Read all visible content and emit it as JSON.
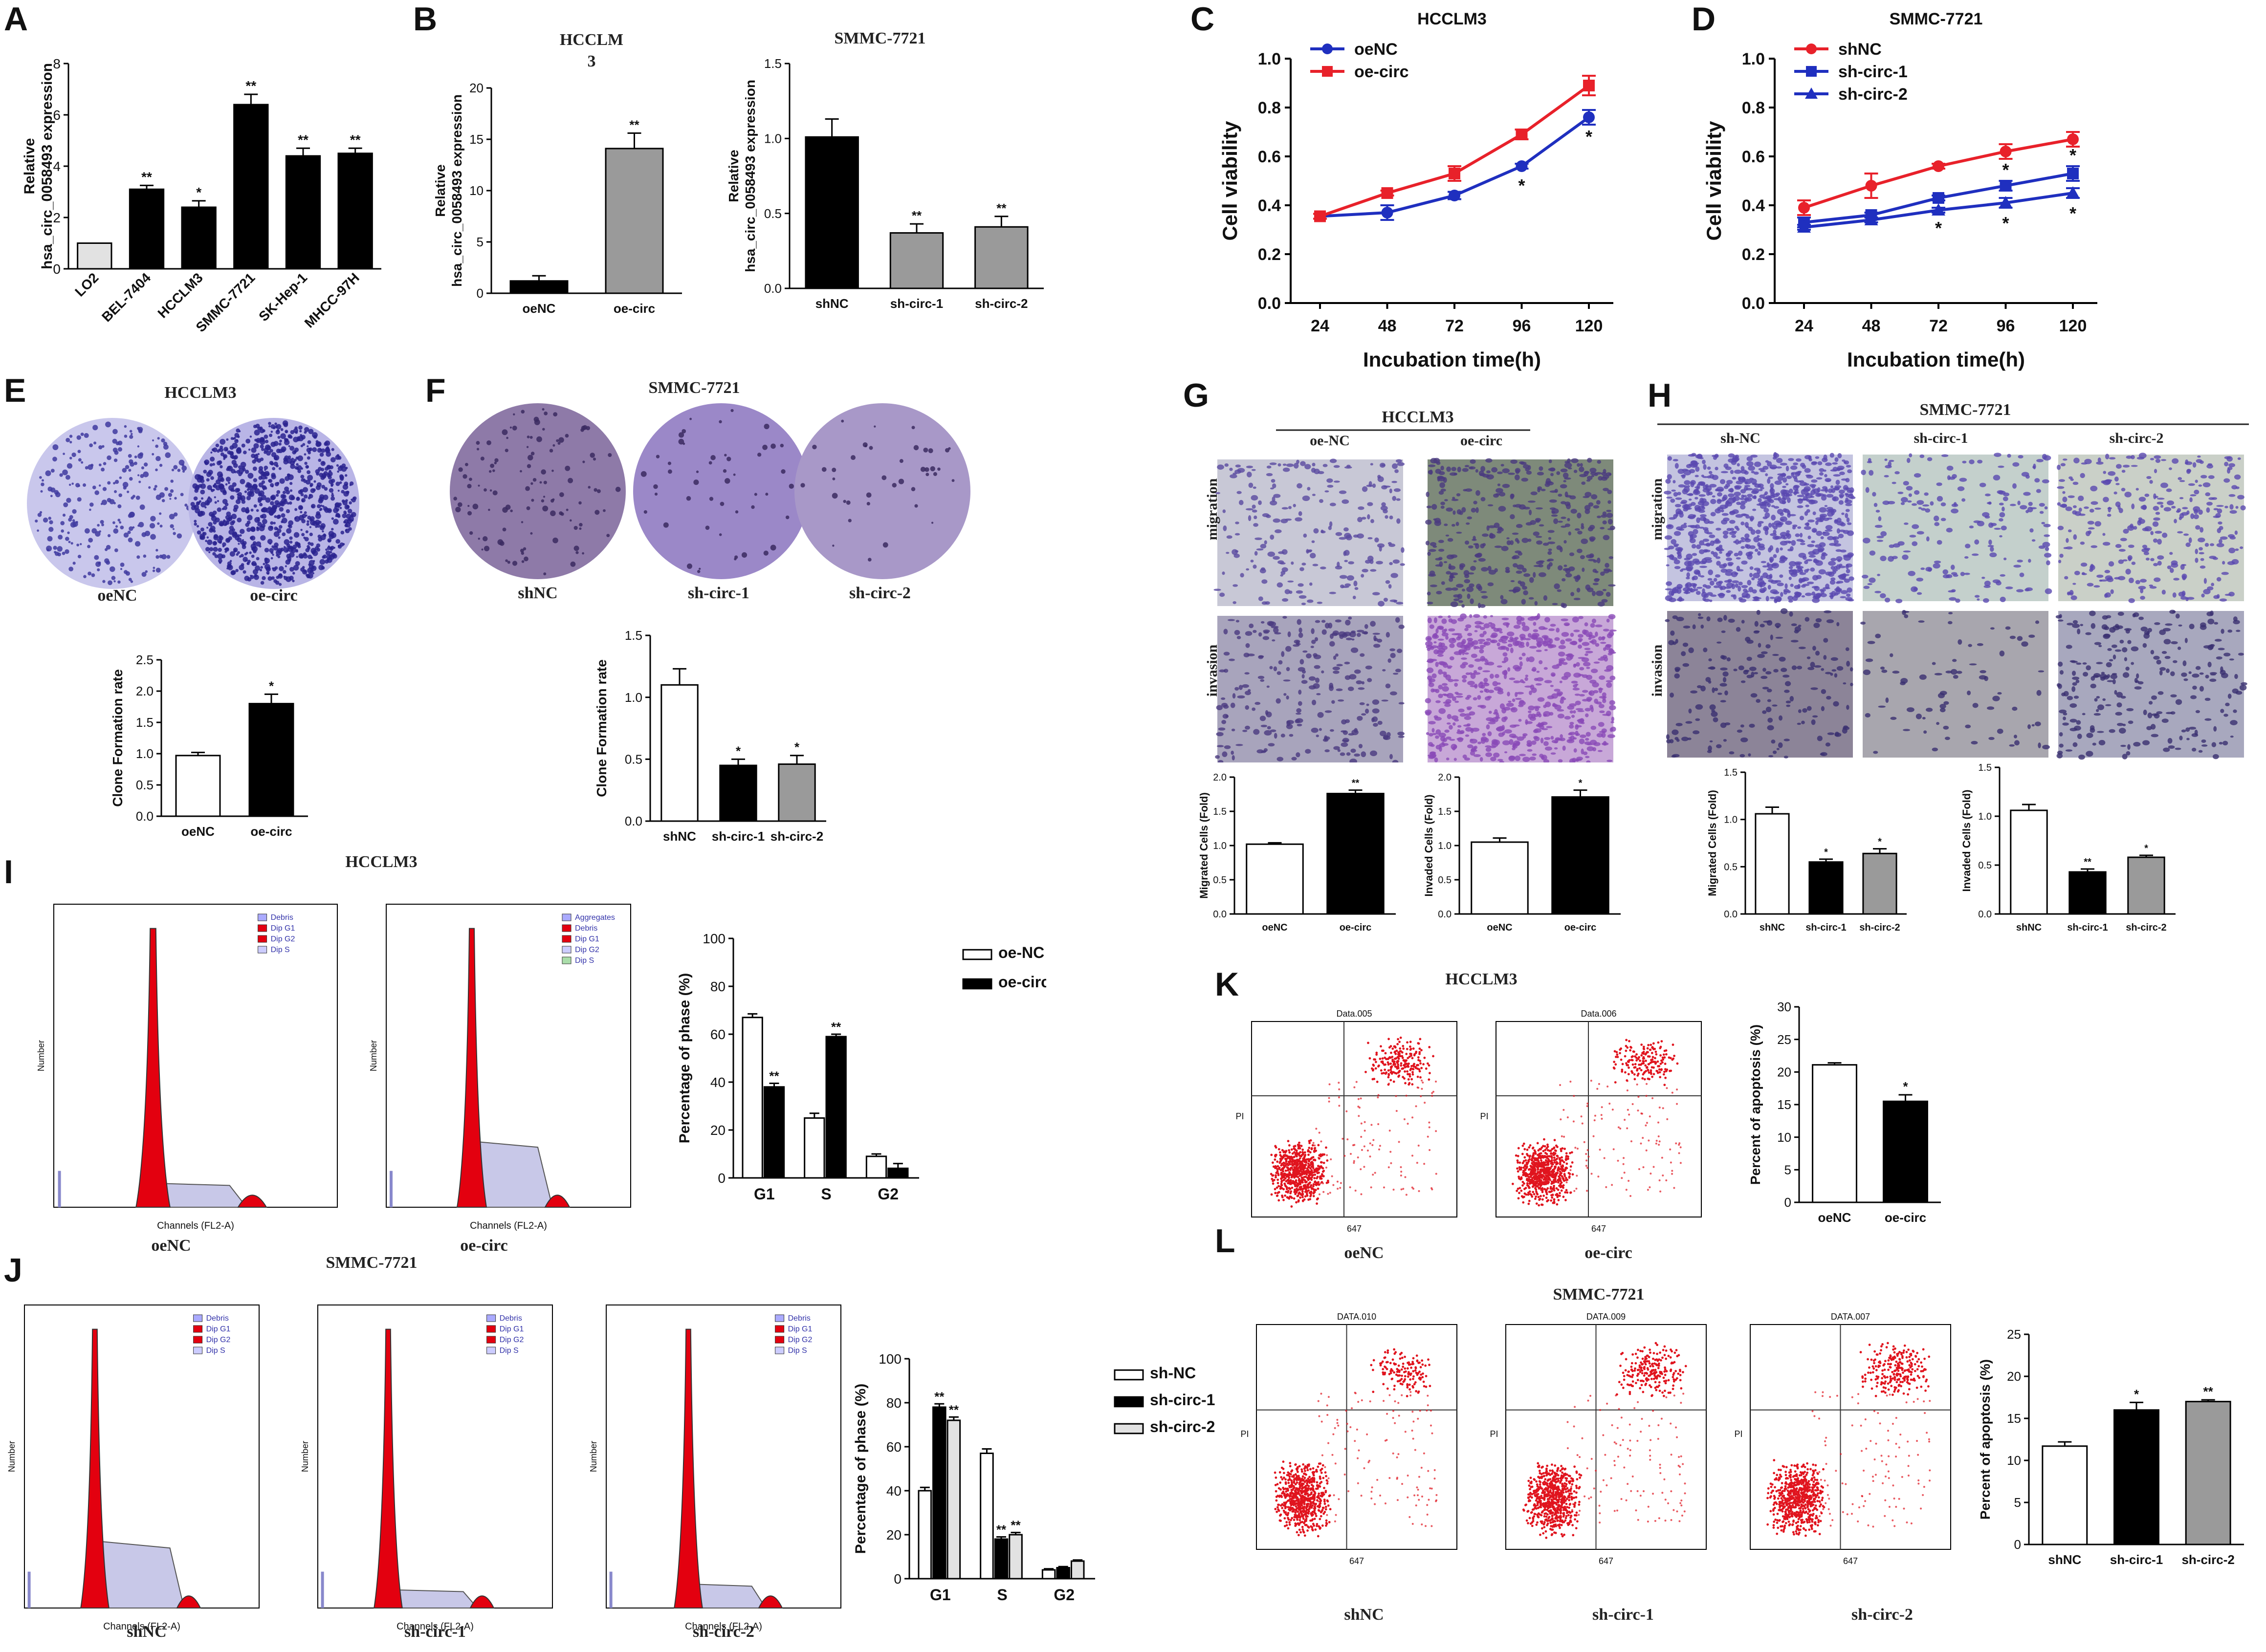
{
  "panels": {
    "A": "A",
    "B": "B",
    "C": "C",
    "D": "D",
    "E": "E",
    "F": "F",
    "G": "G",
    "H": "H",
    "I": "I",
    "J": "J",
    "K": "K",
    "L": "L"
  },
  "titles": {
    "B_left": "HCCLM 3",
    "B_right": "SMMC-7721",
    "E": "HCCLM3",
    "F": "SMMC-7721",
    "G": "HCCLM3",
    "H": "SMMC-7721",
    "I": "HCCLM3",
    "J": "SMMC-7721",
    "K": "HCCLM3",
    "L": "SMMC-7721"
  },
  "labels": {
    "migration": "migration",
    "invasion": "invasion",
    "E_imgs": [
      "oeNC",
      "oe-circ"
    ],
    "F_imgs": [
      "shNC",
      "sh-circ-1",
      "sh-circ-2"
    ],
    "G_cols": [
      "oe-NC",
      "oe-circ"
    ],
    "H_cols": [
      "sh-NC",
      "sh-circ-1",
      "sh-circ-2"
    ],
    "I_hist": [
      "oeNC",
      "oe-circ"
    ],
    "J_hist": [
      "shNC",
      "sh-circ-1",
      "sh-circ-2"
    ],
    "K_flow": [
      "oeNC",
      "oe-circ"
    ],
    "L_flow": [
      "shNC",
      "sh-circ-1",
      "sh-circ-2"
    ],
    "hist_xlabel": "Channels (FL2-A)",
    "hist_ylabel": "Number",
    "hist_legend": [
      "Debris",
      "Dip G1",
      "Dip G2",
      "Dip S"
    ],
    "hist_legend_agg": [
      "Aggregates",
      "Debris",
      "Dip G1",
      "Dip G2",
      "Dip S"
    ],
    "flow_titles_K": [
      "Data.005",
      "Data.006"
    ],
    "flow_titles_L": [
      "DATA.010",
      "DATA.009",
      "DATA.007"
    ],
    "flow_y": "PI",
    "flow_x": "647"
  },
  "colors": {
    "accent_red": "#e8212a",
    "accent_blue": "#1f2fbf",
    "bar_black": "#000000",
    "bar_gray": "#9a9a9a",
    "bar_light": "#e2e2e2",
    "bar_white": "#ffffff",
    "purple": "#6c5aa8"
  },
  "chart_data": [
    {
      "id": "A",
      "type": "bar",
      "ylabel": "Relative\nhsa_circ_0058493 expression",
      "categories": [
        "LO2",
        "BEL-7404",
        "HCCLM3",
        "SMMC-7721",
        "SK-Hep-1",
        "MHCC-97H"
      ],
      "values": [
        1.0,
        3.1,
        2.4,
        6.4,
        4.4,
        4.5
      ],
      "errors": [
        0,
        0.15,
        0.25,
        0.4,
        0.3,
        0.2
      ],
      "sig": [
        "",
        "**",
        "*",
        "**",
        "**",
        "**"
      ],
      "fills": [
        "#e2e2e2",
        "#000",
        "#000",
        "#000",
        "#000",
        "#000"
      ],
      "ylim": [
        0,
        8
      ],
      "yticks": [
        0,
        2,
        4,
        6,
        8
      ]
    },
    {
      "id": "B1",
      "type": "bar",
      "ylabel": "Relative\nhsa_circ_0058493 expression",
      "categories": [
        "oeNC",
        "oe-circ"
      ],
      "values": [
        1.2,
        14.1
      ],
      "errors": [
        0.5,
        1.5
      ],
      "sig": [
        "",
        "**"
      ],
      "fills": [
        "#000",
        "#9a9a9a"
      ],
      "ylim": [
        0,
        20
      ],
      "yticks": [
        0,
        5,
        10,
        15,
        20
      ]
    },
    {
      "id": "B2",
      "type": "bar",
      "ylabel": "Relative\nhsa_circ_0058493 expression",
      "categories": [
        "shNC",
        "sh-circ-1",
        "sh-circ-2"
      ],
      "values": [
        1.01,
        0.37,
        0.41
      ],
      "errors": [
        0.12,
        0.06,
        0.07
      ],
      "sig": [
        "",
        "**",
        "**"
      ],
      "fills": [
        "#000",
        "#9a9a9a",
        "#9a9a9a"
      ],
      "ylim": [
        0,
        1.5
      ],
      "yticks": [
        0.0,
        0.5,
        1.0,
        1.5
      ]
    },
    {
      "id": "C",
      "type": "line",
      "title": "HCCLM3",
      "xlabel": "Incubation time(h)",
      "ylabel": "Cell viability",
      "x": [
        24,
        48,
        72,
        96,
        120
      ],
      "ylim": [
        0,
        1.0
      ],
      "yticks": [
        0.0,
        0.2,
        0.4,
        0.6,
        0.8,
        1.0
      ],
      "series": [
        {
          "name": "oeNC",
          "color": "#1f2fbf",
          "marker": "circle",
          "values": [
            0.355,
            0.37,
            0.44,
            0.56,
            0.76
          ],
          "errors": [
            0.01,
            0.03,
            0.015,
            0.01,
            0.03
          ],
          "sig": [
            "",
            "",
            "",
            "*",
            "*"
          ]
        },
        {
          "name": "oe-circ",
          "color": "#e8212a",
          "marker": "square",
          "values": [
            0.355,
            0.45,
            0.53,
            0.69,
            0.89
          ],
          "errors": [
            0.01,
            0.01,
            0.03,
            0.02,
            0.04
          ],
          "sig": [
            "",
            "",
            "",
            "",
            ""
          ]
        }
      ]
    },
    {
      "id": "D",
      "type": "line",
      "title": "SMMC-7721",
      "xlabel": "Incubation time(h)",
      "ylabel": "Cell viability",
      "x": [
        24,
        48,
        72,
        96,
        120
      ],
      "ylim": [
        0,
        1.0
      ],
      "yticks": [
        0.0,
        0.2,
        0.4,
        0.6,
        0.8,
        1.0
      ],
      "series": [
        {
          "name": "shNC",
          "color": "#e8212a",
          "marker": "circle",
          "values": [
            0.39,
            0.48,
            0.56,
            0.62,
            0.67
          ],
          "errors": [
            0.03,
            0.05,
            0.01,
            0.03,
            0.03
          ],
          "sig": [
            "",
            "",
            "",
            "",
            ""
          ]
        },
        {
          "name": "sh-circ-1",
          "color": "#1f2fbf",
          "marker": "square",
          "values": [
            0.33,
            0.36,
            0.43,
            0.48,
            0.53
          ],
          "errors": [
            0.02,
            0.01,
            0.01,
            0.02,
            0.03
          ],
          "sig": [
            "",
            "",
            "",
            "*",
            "*"
          ]
        },
        {
          "name": "sh-circ-2",
          "color": "#1f2fbf",
          "marker": "triangle",
          "values": [
            0.31,
            0.34,
            0.38,
            0.41,
            0.45
          ],
          "errors": [
            0.01,
            0.01,
            0.01,
            0.02,
            0.02
          ],
          "sig": [
            "",
            "",
            "*",
            "*",
            "*"
          ]
        }
      ]
    },
    {
      "id": "E",
      "type": "bar",
      "ylabel": "Clone Formation rate",
      "categories": [
        "oeNC",
        "oe-circ"
      ],
      "values": [
        0.97,
        1.8
      ],
      "errors": [
        0.05,
        0.15
      ],
      "sig": [
        "",
        "*"
      ],
      "fills": [
        "#fff",
        "#000"
      ],
      "ylim": [
        0,
        2.5
      ],
      "yticks": [
        0.0,
        0.5,
        1.0,
        1.5,
        2.0,
        2.5
      ]
    },
    {
      "id": "F",
      "type": "bar",
      "ylabel": "Clone Formation rate",
      "categories": [
        "shNC",
        "sh-circ-1",
        "sh-circ-2"
      ],
      "values": [
        1.1,
        0.45,
        0.46
      ],
      "errors": [
        0.13,
        0.05,
        0.07
      ],
      "sig": [
        "",
        "*",
        "*"
      ],
      "fills": [
        "#fff",
        "#000",
        "#9a9a9a"
      ],
      "ylim": [
        0,
        1.5
      ],
      "yticks": [
        0.0,
        0.5,
        1.0,
        1.5
      ]
    },
    {
      "id": "G1",
      "type": "bar",
      "ylabel": "Migrated Cells (Fold)",
      "categories": [
        "oeNC",
        "oe-circ"
      ],
      "values": [
        1.02,
        1.76
      ],
      "errors": [
        0.02,
        0.05
      ],
      "sig": [
        "",
        "**"
      ],
      "fills": [
        "#fff",
        "#000"
      ],
      "ylim": [
        0,
        2.0
      ],
      "yticks": [
        0.0,
        0.5,
        1.0,
        1.5,
        2.0
      ]
    },
    {
      "id": "G2",
      "type": "bar",
      "ylabel": "Invaded Cells (Fold)",
      "categories": [
        "oeNC",
        "oe-circ"
      ],
      "values": [
        1.05,
        1.71
      ],
      "errors": [
        0.06,
        0.1
      ],
      "sig": [
        "",
        "*"
      ],
      "fills": [
        "#fff",
        "#000"
      ],
      "ylim": [
        0,
        2.0
      ],
      "yticks": [
        0.0,
        0.5,
        1.0,
        1.5,
        2.0
      ]
    },
    {
      "id": "H1",
      "type": "bar",
      "ylabel": "Migrated Cells (Fold)",
      "categories": [
        "shNC",
        "sh-circ-1",
        "sh-circ-2"
      ],
      "values": [
        1.06,
        0.55,
        0.64
      ],
      "errors": [
        0.07,
        0.03,
        0.05
      ],
      "sig": [
        "",
        "*",
        "*"
      ],
      "fills": [
        "#fff",
        "#000",
        "#9a9a9a"
      ],
      "ylim": [
        0,
        1.5
      ],
      "yticks": [
        0.0,
        0.5,
        1.0,
        1.5
      ]
    },
    {
      "id": "H2",
      "type": "bar",
      "ylabel": "Invaded Cells (Fold)",
      "categories": [
        "shNC",
        "sh-circ-1",
        "sh-circ-2"
      ],
      "values": [
        1.06,
        0.43,
        0.58
      ],
      "errors": [
        0.06,
        0.03,
        0.02
      ],
      "sig": [
        "",
        "**",
        "*"
      ],
      "fills": [
        "#fff",
        "#000",
        "#9a9a9a"
      ],
      "ylim": [
        0,
        1.5
      ],
      "yticks": [
        0.0,
        0.5,
        1.0,
        1.5
      ]
    },
    {
      "id": "I",
      "type": "bar",
      "grouped": true,
      "ylabel": "Percentage of phase (%)",
      "categories": [
        "G1",
        "S",
        "G2"
      ],
      "series": [
        {
          "name": "oe-NC",
          "fill": "#fff",
          "values": [
            67,
            25,
            9
          ],
          "errors": [
            1.5,
            2,
            1
          ],
          "sig": [
            "",
            "",
            ""
          ]
        },
        {
          "name": "oe-circ",
          "fill": "#000",
          "values": [
            38,
            59,
            4
          ],
          "errors": [
            1.5,
            1,
            2
          ],
          "sig": [
            "**",
            "**",
            ""
          ]
        }
      ],
      "ylim": [
        0,
        100
      ],
      "yticks": [
        0,
        20,
        40,
        60,
        80,
        100
      ]
    },
    {
      "id": "J",
      "type": "bar",
      "grouped": true,
      "ylabel": "Percentage of phase (%)",
      "categories": [
        "G1",
        "S",
        "G2"
      ],
      "series": [
        {
          "name": "sh-NC",
          "fill": "#fff",
          "values": [
            40,
            57,
            4
          ],
          "errors": [
            1.5,
            2,
            0.5
          ],
          "sig": [
            "",
            "",
            ""
          ]
        },
        {
          "name": "sh-circ-1",
          "fill": "#000",
          "values": [
            78,
            18,
            5
          ],
          "errors": [
            1.5,
            1,
            0.5
          ],
          "sig": [
            "**",
            "**",
            ""
          ]
        },
        {
          "name": "sh-circ-2",
          "fill": "#e2e2e2",
          "values": [
            72,
            20,
            8
          ],
          "errors": [
            1.5,
            1,
            0.5
          ],
          "sig": [
            "**",
            "**",
            ""
          ]
        }
      ],
      "ylim": [
        0,
        100
      ],
      "yticks": [
        0,
        20,
        40,
        60,
        80,
        100
      ]
    },
    {
      "id": "K",
      "type": "bar",
      "ylabel": "Percent of apoptosis (%)",
      "categories": [
        "oeNC",
        "oe-circ"
      ],
      "values": [
        21.1,
        15.5
      ],
      "errors": [
        0.3,
        1.0
      ],
      "sig": [
        "",
        "*"
      ],
      "fills": [
        "#fff",
        "#000"
      ],
      "ylim": [
        0,
        30
      ],
      "yticks": [
        0,
        5,
        10,
        15,
        20,
        25,
        30
      ]
    },
    {
      "id": "L",
      "type": "bar",
      "ylabel": "Percent of apoptosis (%)",
      "categories": [
        "shNC",
        "sh-circ-1",
        "sh-circ-2"
      ],
      "values": [
        11.7,
        16.0,
        17.0
      ],
      "errors": [
        0.5,
        0.9,
        0.2
      ],
      "sig": [
        "",
        "*",
        "**"
      ],
      "fills": [
        "#fff",
        "#000",
        "#9a9a9a"
      ],
      "ylim": [
        0,
        25
      ],
      "yticks": [
        0,
        5,
        10,
        15,
        20,
        25
      ]
    }
  ]
}
